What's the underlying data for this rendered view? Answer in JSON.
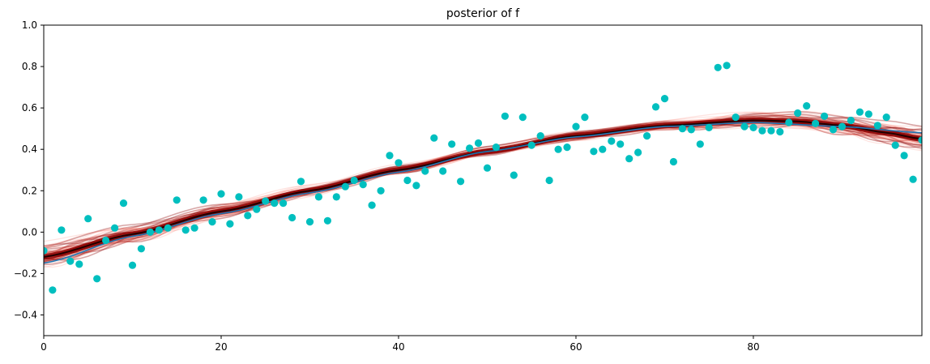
{
  "chart_data": {
    "type": "scatter",
    "title": "posterior of f",
    "xlabel": "",
    "ylabel": "",
    "xlim": [
      0,
      99
    ],
    "ylim": [
      -0.5,
      1.0
    ],
    "x_ticks": [
      0,
      20,
      40,
      60,
      80
    ],
    "x_tick_labels": [
      "0",
      "20",
      "40",
      "60",
      "80"
    ],
    "y_ticks": [
      -0.4,
      -0.2,
      0.0,
      0.2,
      0.4,
      0.6,
      0.8,
      1.0
    ],
    "y_tick_labels": [
      "−0.4",
      "−0.2",
      "0.0",
      "0.2",
      "0.4",
      "0.6",
      "0.8",
      "1.0"
    ],
    "grid": false,
    "colors": {
      "points": "#00bfbf",
      "true_line": "#1f77b4",
      "posterior_dark": "#8b0000",
      "posterior_light": "#fa8072"
    },
    "series": [
      {
        "name": "observations",
        "kind": "scatter",
        "x": [
          0,
          1,
          2,
          3,
          4,
          5,
          6,
          7,
          8,
          9,
          10,
          11,
          12,
          13,
          14,
          15,
          16,
          17,
          18,
          19,
          20,
          21,
          22,
          23,
          24,
          25,
          26,
          27,
          28,
          29,
          30,
          31,
          32,
          33,
          34,
          35,
          36,
          37,
          38,
          39,
          40,
          41,
          42,
          43,
          44,
          45,
          46,
          47,
          48,
          49,
          50,
          51,
          52,
          53,
          54,
          55,
          56,
          57,
          58,
          59,
          60,
          61,
          62,
          63,
          64,
          65,
          66,
          67,
          68,
          69,
          70,
          71,
          72,
          73,
          74,
          75,
          76,
          77,
          78,
          79,
          80,
          81,
          82,
          83,
          84,
          85,
          86,
          87,
          88,
          89,
          90,
          91,
          92,
          93,
          94,
          95,
          96,
          97,
          98,
          99
        ],
        "values": [
          -0.09,
          -0.28,
          0.01,
          -0.14,
          -0.155,
          0.065,
          -0.225,
          -0.04,
          0.02,
          0.14,
          -0.16,
          -0.08,
          0.0,
          0.01,
          0.02,
          0.155,
          0.01,
          0.02,
          0.155,
          0.05,
          0.185,
          0.04,
          0.17,
          0.08,
          0.11,
          0.15,
          0.14,
          0.14,
          0.07,
          0.245,
          0.05,
          0.17,
          0.055,
          0.17,
          0.22,
          0.25,
          0.23,
          0.13,
          0.2,
          0.37,
          0.335,
          0.25,
          0.225,
          0.295,
          0.455,
          0.295,
          0.425,
          0.245,
          0.405,
          0.43,
          0.31,
          0.41,
          0.56,
          0.275,
          0.555,
          0.42,
          0.465,
          0.25,
          0.4,
          0.41,
          0.51,
          0.555,
          0.39,
          0.4,
          0.44,
          0.425,
          0.355,
          0.385,
          0.465,
          0.605,
          0.645,
          0.34,
          0.5,
          0.495,
          0.425,
          0.505,
          0.795,
          0.805,
          0.555,
          0.51,
          0.505,
          0.49,
          0.49,
          0.485,
          0.53,
          0.575,
          0.61,
          0.525,
          0.56,
          0.495,
          0.51,
          0.54,
          0.58,
          0.57,
          0.515,
          0.555,
          0.42,
          0.37,
          0.255,
          0.445
        ]
      },
      {
        "name": "true function",
        "kind": "line",
        "x": [
          0,
          10,
          20,
          30,
          40,
          50,
          60,
          70,
          80,
          90,
          99
        ],
        "values": [
          -0.15,
          -0.02,
          0.09,
          0.19,
          0.29,
          0.39,
          0.46,
          0.51,
          0.53,
          0.51,
          0.48
        ]
      },
      {
        "name": "posterior mean",
        "kind": "line",
        "x": [
          0,
          10,
          20,
          30,
          40,
          50,
          60,
          70,
          80,
          85,
          90,
          95,
          99
        ],
        "values": [
          -0.12,
          -0.01,
          0.1,
          0.2,
          0.3,
          0.39,
          0.465,
          0.515,
          0.54,
          0.535,
          0.515,
          0.48,
          0.45
        ]
      }
    ]
  }
}
